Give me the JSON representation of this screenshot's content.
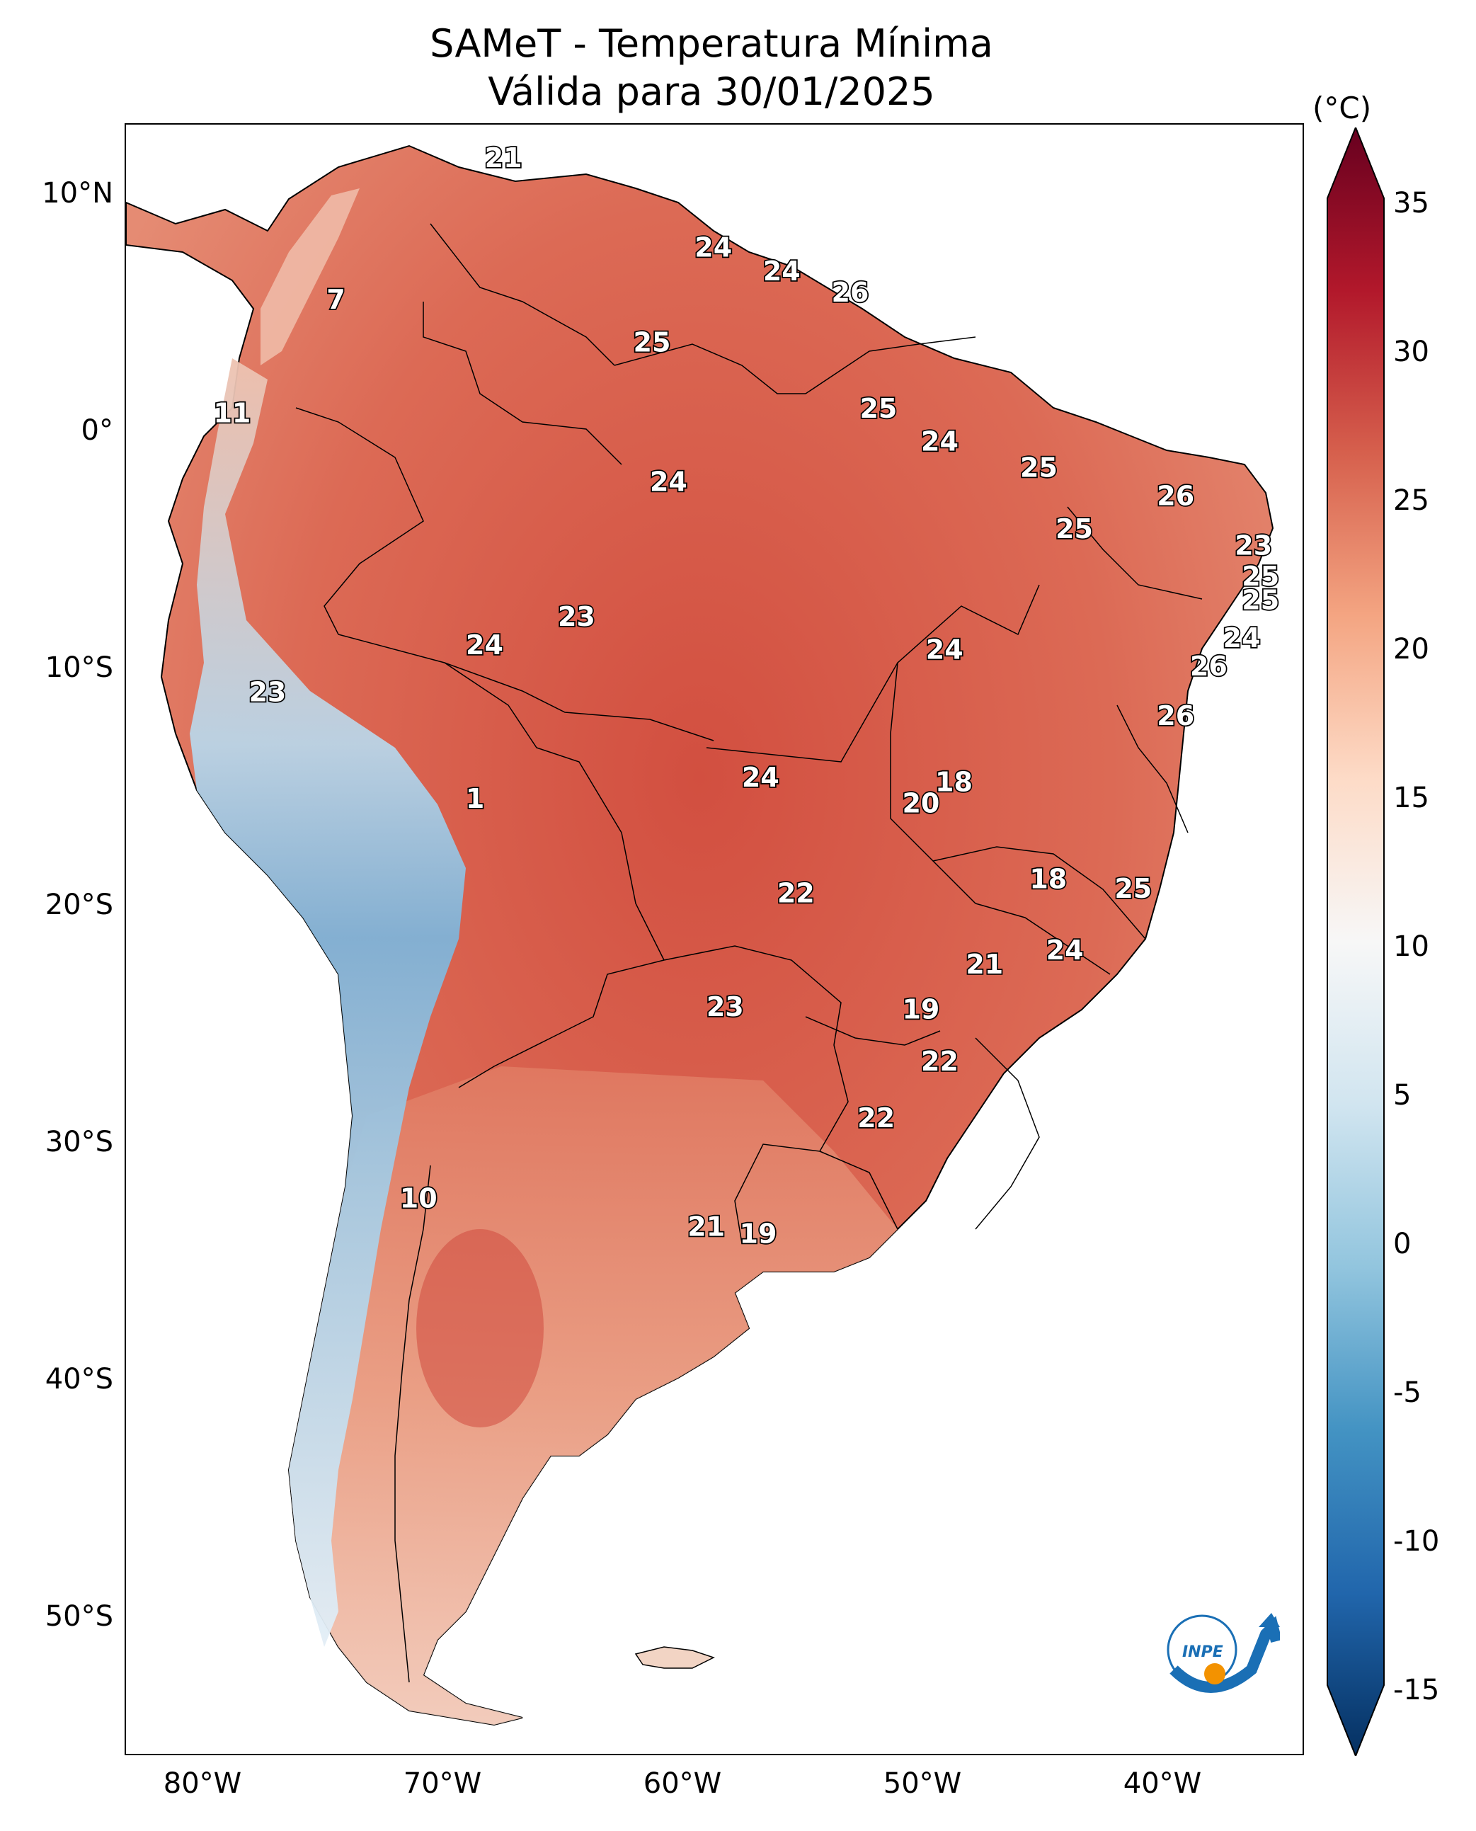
{
  "title": {
    "line1": "SAMeT - Temperatura Mínima",
    "line2": "Válida para 30/01/2025"
  },
  "colorbar": {
    "unit": "(°C)",
    "ticks": [
      "35",
      "30",
      "25",
      "20",
      "15",
      "10",
      "5",
      "0",
      "-5",
      "-10",
      "-15"
    ],
    "range": [
      -15,
      35
    ],
    "colors": {
      "cold_end": "#0a3a78",
      "cool": "#5aa0cf",
      "neutral": "#f7f7f7",
      "warm": "#e6826a",
      "hot_end": "#67001f"
    }
  },
  "axes": {
    "lat_labels": [
      "10°N",
      "0°",
      "10°S",
      "20°S",
      "30°S",
      "40°S",
      "50°S"
    ],
    "lon_labels": [
      "80°W",
      "70°W",
      "60°W",
      "50°W",
      "40°W"
    ]
  },
  "city_values": [
    {
      "value": "21",
      "lon": -67.0,
      "lat": 10.6
    },
    {
      "value": "7",
      "lon": -74.1,
      "lat": 4.6
    },
    {
      "value": "11",
      "lon": -78.5,
      "lat": -0.2
    },
    {
      "value": "23",
      "lon": -77.0,
      "lat": -12.0
    },
    {
      "value": "1",
      "lon": -68.2,
      "lat": -16.5
    },
    {
      "value": "10",
      "lon": -70.6,
      "lat": -33.4
    },
    {
      "value": "24",
      "lon": -55.2,
      "lat": 5.8
    },
    {
      "value": "24",
      "lon": -58.1,
      "lat": 6.8
    },
    {
      "value": "26",
      "lon": -52.3,
      "lat": 4.9
    },
    {
      "value": "25",
      "lon": -60.7,
      "lat": 2.8
    },
    {
      "value": "25",
      "lon": -51.1,
      "lat": 0.0
    },
    {
      "value": "24",
      "lon": -48.5,
      "lat": -1.4
    },
    {
      "value": "25",
      "lon": -44.3,
      "lat": -2.5
    },
    {
      "value": "26",
      "lon": -38.5,
      "lat": -3.7
    },
    {
      "value": "25",
      "lon": -42.8,
      "lat": -5.1
    },
    {
      "value": "23",
      "lon": -35.2,
      "lat": -5.8
    },
    {
      "value": "25",
      "lon": -34.9,
      "lat": -7.1
    },
    {
      "value": "25",
      "lon": -34.9,
      "lat": -8.1
    },
    {
      "value": "24",
      "lon": -35.7,
      "lat": -9.7
    },
    {
      "value": "26",
      "lon": -37.1,
      "lat": -10.9
    },
    {
      "value": "26",
      "lon": -38.5,
      "lat": -13.0
    },
    {
      "value": "24",
      "lon": -60.0,
      "lat": -3.1
    },
    {
      "value": "23",
      "lon": -63.9,
      "lat": -8.8
    },
    {
      "value": "24",
      "lon": -67.8,
      "lat": -10.0
    },
    {
      "value": "24",
      "lon": -48.3,
      "lat": -10.2
    },
    {
      "value": "24",
      "lon": -56.1,
      "lat": -15.6
    },
    {
      "value": "18",
      "lon": -47.9,
      "lat": -15.8
    },
    {
      "value": "20",
      "lon": -49.3,
      "lat": -16.7
    },
    {
      "value": "18",
      "lon": -43.9,
      "lat": -19.9
    },
    {
      "value": "25",
      "lon": -40.3,
      "lat": -20.3
    },
    {
      "value": "22",
      "lon": -54.6,
      "lat": -20.5
    },
    {
      "value": "21",
      "lon": -46.6,
      "lat": -23.5
    },
    {
      "value": "24",
      "lon": -43.2,
      "lat": -22.9
    },
    {
      "value": "19",
      "lon": -49.3,
      "lat": -25.4
    },
    {
      "value": "23",
      "lon": -57.6,
      "lat": -25.3
    },
    {
      "value": "22",
      "lon": -48.5,
      "lat": -27.6
    },
    {
      "value": "22",
      "lon": -51.2,
      "lat": -30.0
    },
    {
      "value": "21",
      "lon": -58.4,
      "lat": -34.6
    },
    {
      "value": "19",
      "lon": -56.2,
      "lat": -34.9
    }
  ],
  "logo": {
    "text": "INPE"
  }
}
